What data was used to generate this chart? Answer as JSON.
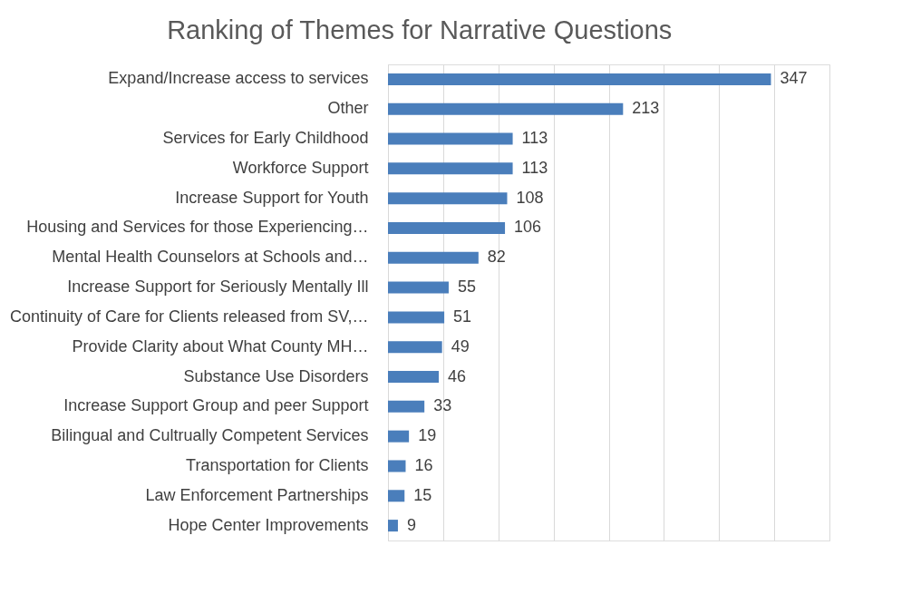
{
  "chart_data": {
    "type": "bar",
    "orientation": "horizontal",
    "title": "Ranking of Themes for Narrative Questions",
    "categories": [
      "Expand/Increase access to services",
      "Other",
      "Services for Early Childhood",
      "Workforce Support",
      "Increase Support for Youth",
      "Housing and Services for those Experiencing…",
      "Mental Health Counselors at Schools and…",
      "Increase Support for Seriously Mentally Ill",
      "Continuity of Care for Clients released from SV,…",
      "Provide Clarity about What County MH…",
      "Substance Use Disorders",
      "Increase Support Group and peer Support ",
      "Bilingual and Cultrually Competent Services",
      "Transportation for Clients",
      "Law Enforcement Partnerships",
      "Hope Center Improvements"
    ],
    "values": [
      347,
      213,
      113,
      113,
      108,
      106,
      82,
      55,
      51,
      49,
      46,
      33,
      19,
      16,
      15,
      9
    ],
    "color": "#4a7ebb",
    "xlim": [
      0,
      400
    ],
    "xticks": [
      {
        "value": 0,
        "label": null
      },
      {
        "value": 50,
        "label": null
      },
      {
        "value": 100,
        "label": null
      },
      {
        "value": 150,
        "label": null
      },
      {
        "value": 200,
        "label": null
      },
      {
        "value": 250,
        "label": null
      },
      {
        "value": 300,
        "label": null
      },
      {
        "value": 350,
        "label": null
      },
      {
        "value": 400,
        "label": null
      }
    ],
    "grid": "x",
    "tick_labels": "y",
    "data_labels": true
  }
}
